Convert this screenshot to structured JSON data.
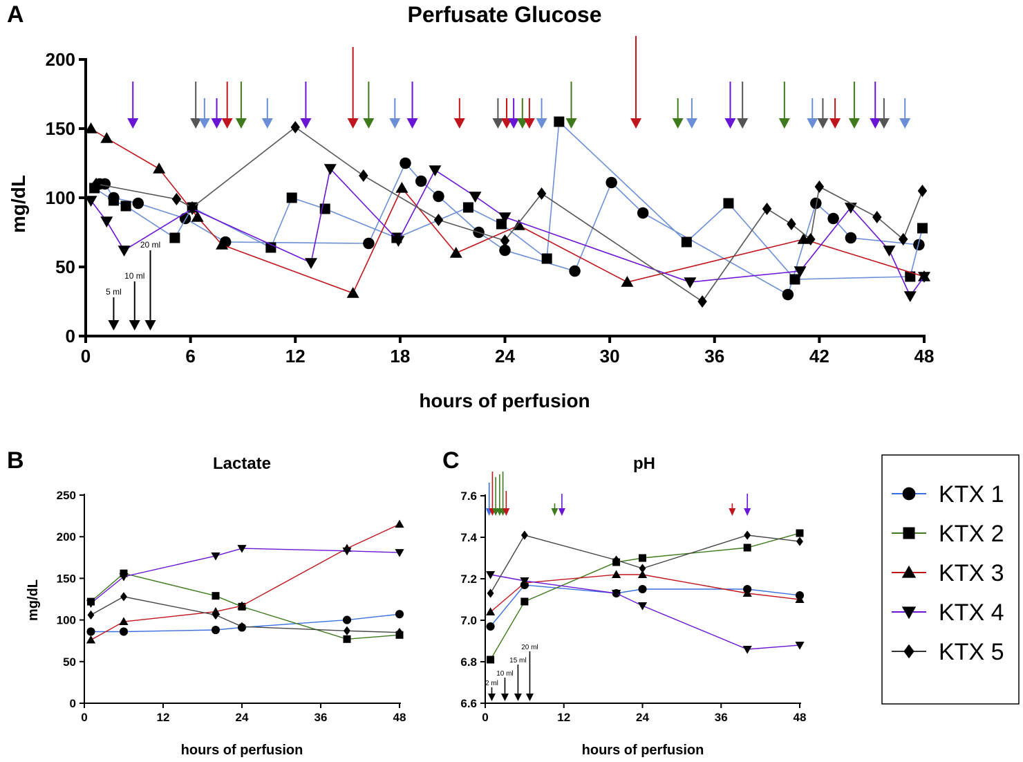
{
  "panels": {
    "a": {
      "letter": "A"
    },
    "b": {
      "letter": "B"
    },
    "c": {
      "letter": "C"
    }
  },
  "legend": {
    "items": [
      {
        "label": "KTX 1",
        "color": "#3b6fe0",
        "marker": "circle"
      },
      {
        "label": "KTX 2",
        "color": "#3f7a1c",
        "marker": "square"
      },
      {
        "label": "KTX 3",
        "color": "#c0151c",
        "marker": "triangle-up"
      },
      {
        "label": "KTX 4",
        "color": "#6a14d6",
        "marker": "triangle-down"
      },
      {
        "label": "KTX 5",
        "color": "#333333",
        "marker": "diamond"
      }
    ]
  },
  "chart_data": [
    {
      "id": "glucose",
      "type": "line",
      "title": "Perfusate Glucose",
      "xlabel": "hours of perfusion",
      "ylabel": "mg/dL",
      "xlim": [
        0,
        48
      ],
      "ylim": [
        0,
        200
      ],
      "xticks": [
        0,
        6,
        12,
        18,
        24,
        30,
        36,
        42,
        48
      ],
      "yticks": [
        0,
        50,
        100,
        150,
        200
      ],
      "series": [
        {
          "name": "KTX 1",
          "color": "#6b8fd6",
          "marker": "circle",
          "points": [
            [
              0.8,
              110
            ],
            [
              1.1,
              110
            ],
            [
              1.6,
              100
            ],
            [
              3,
              96
            ],
            [
              5.7,
              85
            ],
            [
              8,
              68
            ],
            [
              16.2,
              67
            ],
            [
              18.3,
              125
            ],
            [
              19.2,
              112
            ],
            [
              20.2,
              101
            ],
            [
              22.5,
              75
            ],
            [
              24,
              62
            ],
            [
              28,
              47
            ],
            [
              30.1,
              111
            ],
            [
              31.9,
              89
            ],
            [
              40.2,
              30
            ],
            [
              41.8,
              96
            ],
            [
              42.8,
              85
            ],
            [
              43.8,
              71
            ],
            [
              47.7,
              66
            ]
          ]
        },
        {
          "name": "KTX 2",
          "color": "#6b8fd6",
          "marker": "square",
          "points": [
            [
              0.5,
              107
            ],
            [
              1.6,
              98
            ],
            [
              2.3,
              94
            ],
            [
              5.1,
              71
            ],
            [
              6.1,
              93
            ],
            [
              10.6,
              64
            ],
            [
              11.8,
              100
            ],
            [
              13.7,
              92
            ],
            [
              17.8,
              71
            ],
            [
              21.9,
              93
            ],
            [
              23.8,
              81
            ],
            [
              26.4,
              56
            ],
            [
              27.1,
              155
            ],
            [
              34.4,
              68
            ],
            [
              36.8,
              96
            ],
            [
              40.6,
              41
            ],
            [
              47.2,
              43
            ],
            [
              47.9,
              78
            ]
          ]
        },
        {
          "name": "KTX 3",
          "color": "#c0151c",
          "marker": "triangle-up",
          "points": [
            [
              0.3,
              150
            ],
            [
              1.2,
              143
            ],
            [
              4.2,
              121
            ],
            [
              6.4,
              86
            ],
            [
              7.8,
              66
            ],
            [
              15.3,
              31
            ],
            [
              18.1,
              107
            ],
            [
              21.2,
              60
            ],
            [
              24.8,
              80
            ],
            [
              31,
              39
            ],
            [
              41.1,
              70
            ],
            [
              48,
              43
            ]
          ]
        },
        {
          "name": "KTX 4",
          "color": "#6a14d6",
          "marker": "triangle-down",
          "points": [
            [
              0.3,
              98
            ],
            [
              1.2,
              83
            ],
            [
              2.2,
              62
            ],
            [
              6.1,
              92
            ],
            [
              12.9,
              53
            ],
            [
              14,
              121
            ],
            [
              17.9,
              69
            ],
            [
              20,
              120
            ],
            [
              22.3,
              101
            ],
            [
              24,
              86
            ],
            [
              34.6,
              39
            ],
            [
              40.9,
              47
            ],
            [
              43.8,
              93
            ],
            [
              46,
              62
            ],
            [
              47.2,
              29
            ],
            [
              48,
              43
            ]
          ]
        },
        {
          "name": "KTX 5",
          "color": "#555555",
          "marker": "diamond",
          "points": [
            [
              0.6,
              110
            ],
            [
              5.2,
              99
            ],
            [
              6.1,
              93
            ],
            [
              12,
              151
            ],
            [
              15.9,
              116
            ],
            [
              20.2,
              84
            ],
            [
              24,
              69
            ],
            [
              26.1,
              103
            ],
            [
              35.3,
              25
            ],
            [
              39,
              92
            ],
            [
              40.4,
              81
            ],
            [
              41.5,
              70
            ],
            [
              42,
              108
            ],
            [
              45.3,
              86
            ],
            [
              46.8,
              70
            ],
            [
              47.9,
              105
            ]
          ]
        }
      ],
      "volume_markers": [
        {
          "x": 1.6,
          "label": "5 ml"
        },
        {
          "x": 2.8,
          "label": "10 ml"
        },
        {
          "x": 3.7,
          "label": "20 ml"
        }
      ],
      "dosing_arrows": [
        {
          "x": 2.7,
          "color": "#6a14d6"
        },
        {
          "x": 6.3,
          "color": "#555555"
        },
        {
          "x": 6.8,
          "color": "#6b8fd6"
        },
        {
          "x": 7.5,
          "color": "#6a14d6"
        },
        {
          "x": 8.1,
          "color": "#c0151c"
        },
        {
          "x": 8.9,
          "color": "#3f7a1c"
        },
        {
          "x": 10.4,
          "color": "#6b8fd6"
        },
        {
          "x": 12.6,
          "color": "#6a14d6"
        },
        {
          "x": 15.3,
          "color": "#c0151c"
        },
        {
          "x": 16.2,
          "color": "#3f7a1c"
        },
        {
          "x": 17.7,
          "color": "#6b8fd6"
        },
        {
          "x": 18.7,
          "color": "#6a14d6"
        },
        {
          "x": 21.4,
          "color": "#c0151c"
        },
        {
          "x": 23.6,
          "color": "#555555"
        },
        {
          "x": 24.1,
          "color": "#c0151c"
        },
        {
          "x": 24.5,
          "color": "#6a14d6"
        },
        {
          "x": 25.0,
          "color": "#3f7a1c"
        },
        {
          "x": 25.4,
          "color": "#c0151c"
        },
        {
          "x": 26.1,
          "color": "#6b8fd6"
        },
        {
          "x": 27.8,
          "color": "#3f7a1c"
        },
        {
          "x": 31.5,
          "color": "#c0151c"
        },
        {
          "x": 33.9,
          "color": "#3f7a1c"
        },
        {
          "x": 34.7,
          "color": "#6b8fd6"
        },
        {
          "x": 36.9,
          "color": "#6a14d6"
        },
        {
          "x": 37.6,
          "color": "#555555"
        },
        {
          "x": 40.0,
          "color": "#3f7a1c"
        },
        {
          "x": 41.6,
          "color": "#6b8fd6"
        },
        {
          "x": 42.2,
          "color": "#555555"
        },
        {
          "x": 42.9,
          "color": "#c0151c"
        },
        {
          "x": 44.0,
          "color": "#3f7a1c"
        },
        {
          "x": 45.2,
          "color": "#6a14d6"
        },
        {
          "x": 45.7,
          "color": "#555555"
        },
        {
          "x": 46.9,
          "color": "#6b8fd6"
        }
      ]
    },
    {
      "id": "lactate",
      "type": "line",
      "title": "Lactate",
      "xlabel": "hours of perfusion",
      "ylabel": "mg/dL",
      "xlim": [
        0,
        48
      ],
      "ylim": [
        0,
        250
      ],
      "xticks": [
        0,
        12,
        24,
        36,
        48
      ],
      "yticks": [
        0,
        50,
        100,
        150,
        200,
        250
      ],
      "series": [
        {
          "name": "KTX 1",
          "color": "#3b6fe0",
          "marker": "circle",
          "points": [
            [
              1,
              86
            ],
            [
              6,
              86
            ],
            [
              20,
              88
            ],
            [
              24,
              91
            ],
            [
              40,
              100
            ],
            [
              48,
              107
            ]
          ]
        },
        {
          "name": "KTX 2",
          "color": "#3f7a1c",
          "marker": "square",
          "points": [
            [
              1,
              122
            ],
            [
              6,
              156
            ],
            [
              20,
              129
            ],
            [
              24,
              116
            ],
            [
              40,
              77
            ],
            [
              48,
              82
            ]
          ]
        },
        {
          "name": "KTX 3",
          "color": "#c0151c",
          "marker": "triangle-up",
          "points": [
            [
              1,
              76
            ],
            [
              6,
              98
            ],
            [
              20,
              110
            ],
            [
              24,
              117
            ],
            [
              40,
              186
            ],
            [
              48,
              215
            ]
          ]
        },
        {
          "name": "KTX 4",
          "color": "#6a14d6",
          "marker": "triangle-down",
          "points": [
            [
              1,
              120
            ],
            [
              6,
              152
            ],
            [
              20,
              177
            ],
            [
              24,
              186
            ],
            [
              40,
              183
            ],
            [
              48,
              181
            ]
          ]
        },
        {
          "name": "KTX 5",
          "color": "#444444",
          "marker": "diamond",
          "points": [
            [
              1,
              106
            ],
            [
              6,
              128
            ],
            [
              20,
              106
            ],
            [
              24,
              92
            ],
            [
              40,
              87
            ],
            [
              48,
              85
            ]
          ]
        }
      ]
    },
    {
      "id": "ph",
      "type": "line",
      "title": "pH",
      "xlabel": "hours of perfusion",
      "ylabel": "",
      "xlim": [
        0,
        48
      ],
      "ylim": [
        6.6,
        7.6
      ],
      "xticks": [
        0,
        12,
        24,
        36,
        48
      ],
      "yticks": [
        6.6,
        6.8,
        7.0,
        7.2,
        7.4,
        7.6
      ],
      "series": [
        {
          "name": "KTX 1",
          "color": "#3b6fe0",
          "marker": "circle",
          "points": [
            [
              0.8,
              6.97
            ],
            [
              6,
              7.17
            ],
            [
              20,
              7.13
            ],
            [
              24,
              7.15
            ],
            [
              40,
              7.15
            ],
            [
              48,
              7.12
            ]
          ]
        },
        {
          "name": "KTX 2",
          "color": "#3f7a1c",
          "marker": "square",
          "points": [
            [
              0.8,
              6.81
            ],
            [
              6,
              7.09
            ],
            [
              20,
              7.28
            ],
            [
              24,
              7.3
            ],
            [
              40,
              7.35
            ],
            [
              48,
              7.42
            ]
          ]
        },
        {
          "name": "KTX 3",
          "color": "#c0151c",
          "marker": "triangle-up",
          "points": [
            [
              0.8,
              7.04
            ],
            [
              6,
              7.18
            ],
            [
              20,
              7.22
            ],
            [
              24,
              7.22
            ],
            [
              40,
              7.13
            ],
            [
              48,
              7.1
            ]
          ]
        },
        {
          "name": "KTX 4",
          "color": "#6a14d6",
          "marker": "triangle-down",
          "points": [
            [
              0.8,
              7.22
            ],
            [
              6,
              7.19
            ],
            [
              20,
              7.13
            ],
            [
              24,
              7.07
            ],
            [
              40,
              6.86
            ],
            [
              48,
              6.88
            ]
          ]
        },
        {
          "name": "KTX 5",
          "color": "#444444",
          "marker": "diamond",
          "points": [
            [
              0.8,
              7.13
            ],
            [
              6,
              7.41
            ],
            [
              20,
              7.29
            ],
            [
              24,
              7.25
            ],
            [
              40,
              7.41
            ],
            [
              48,
              7.38
            ]
          ]
        }
      ],
      "volume_markers": [
        {
          "x": 1.0,
          "label": "2 ml"
        },
        {
          "x": 3.0,
          "label": "10 ml"
        },
        {
          "x": 5.0,
          "label": "15 ml"
        },
        {
          "x": 6.8,
          "label": "20 ml"
        }
      ],
      "dosing_arrows": [
        {
          "x": 0.6,
          "color": "#3b6fe0"
        },
        {
          "x": 1.1,
          "color": "#c0151c"
        },
        {
          "x": 1.6,
          "color": "#3f7a1c"
        },
        {
          "x": 2.2,
          "color": "#3f7a1c"
        },
        {
          "x": 2.7,
          "color": "#3f7a1c"
        },
        {
          "x": 3.2,
          "color": "#c0151c"
        },
        {
          "x": 10.6,
          "color": "#3f7a1c"
        },
        {
          "x": 11.7,
          "color": "#6a14d6"
        },
        {
          "x": 37.7,
          "color": "#c0151c"
        },
        {
          "x": 40.0,
          "color": "#6a14d6"
        }
      ]
    }
  ]
}
